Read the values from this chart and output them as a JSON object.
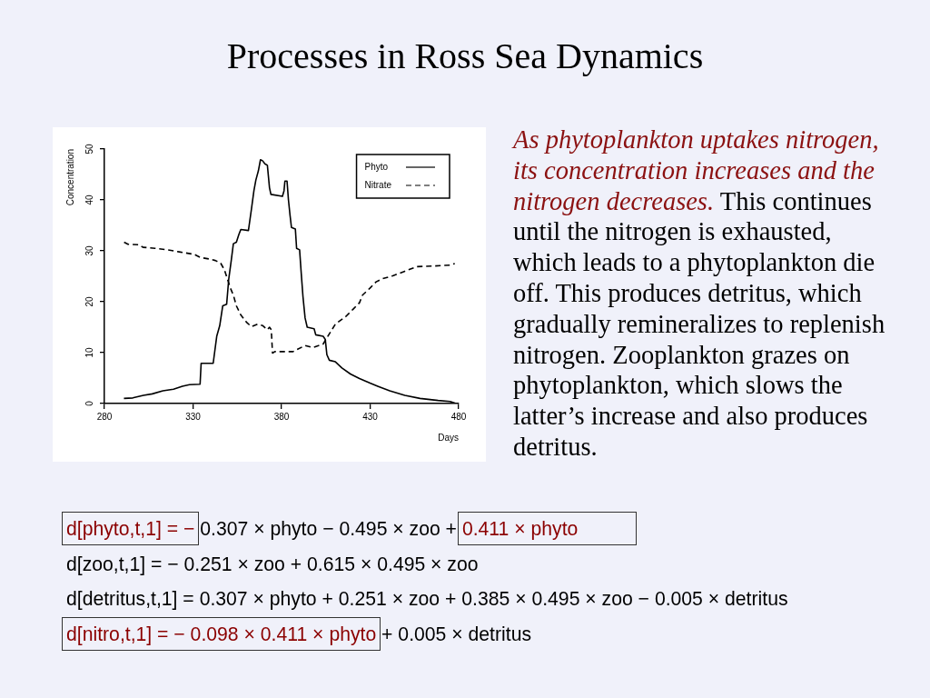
{
  "chart_data": {
    "type": "line",
    "title": "Processes in Ross Sea Dynamics",
    "xlabel": "Days",
    "ylabel": "Concentration",
    "xlim": [
      280,
      480
    ],
    "xticks": [
      280,
      330,
      380,
      430,
      480
    ],
    "ylim": [
      0,
      50
    ],
    "yticks": [
      0,
      10,
      20,
      30,
      40,
      50
    ],
    "grid": false,
    "legend": "top right",
    "marker": "none",
    "series": [
      {
        "name": "Phyto",
        "color": "#000000",
        "line_style": "solid",
        "x": [
          291,
          296,
          302,
          307,
          313,
          319,
          324,
          328,
          334,
          334.6,
          341.4,
          343.4,
          345.1,
          346.8,
          349,
          350.2,
          351.6,
          352.8,
          354.5,
          355.9,
          357,
          361.3,
          363,
          364.4,
          365.5,
          366.9,
          368.1,
          369.3,
          370.6,
          372,
          373.2,
          374,
          380.5,
          381.4,
          381.9,
          383.1,
          383.9,
          384.8,
          385.6,
          387.8,
          388.5,
          390.2,
          391.1,
          392.1,
          393.3,
          394.5,
          398.4,
          399.3,
          403.5,
          404.7,
          405.6,
          407,
          410.4,
          414.1,
          418.9,
          424,
          430,
          434.3,
          441.1,
          449.6,
          458.2,
          468.4,
          475.2,
          478.6
        ],
        "values": [
          1.0,
          1.1,
          1.6,
          1.9,
          2.5,
          2.8,
          3.4,
          3.7,
          3.8,
          7.9,
          7.9,
          13.2,
          15.3,
          19.2,
          19.5,
          24.5,
          28.1,
          31.4,
          31.7,
          33.2,
          34.2,
          34,
          38.2,
          41.8,
          43.9,
          45.7,
          47.9,
          47.7,
          47.1,
          46.8,
          42.4,
          41.1,
          40.7,
          41.8,
          43.7,
          43.7,
          40,
          37,
          34.6,
          34.3,
          30.5,
          30.2,
          25.7,
          21,
          16.8,
          15,
          14.7,
          13.5,
          13.2,
          12.6,
          9.6,
          8.5,
          8.2,
          7,
          5.8,
          4.9,
          4,
          3.4,
          2.5,
          1.6,
          1.0,
          0.6,
          0.4,
          0
        ]
      },
      {
        "name": "Nitrate",
        "color": "#000000",
        "line_style": "dashed",
        "x": [
          291.1,
          293.3,
          299.2,
          301.8,
          308.6,
          315.4,
          322.2,
          330.7,
          334.1,
          339.2,
          342.6,
          345.6,
          347.7,
          349.4,
          351.1,
          352.8,
          354.5,
          357,
          360.4,
          363,
          366.4,
          369.4,
          372,
          373.2,
          374.2,
          374.9,
          376.2,
          386.5,
          393.3,
          397.6,
          403.5,
          406.1,
          410.4,
          416.3,
          420.6,
          424,
          425.7,
          430,
          433.4,
          436.8,
          442.8,
          449.6,
          456.5,
          465,
          475.2,
          477.8
        ],
        "values": [
          31.7,
          31.3,
          31.2,
          30.7,
          30.5,
          30.2,
          29.8,
          29.3,
          28.7,
          28.4,
          28.1,
          27.6,
          26.3,
          24.5,
          22.7,
          21.3,
          19.2,
          17.4,
          15.9,
          15.1,
          15.6,
          15.3,
          14.5,
          15,
          14.5,
          9.9,
          10.2,
          10.2,
          11.4,
          11,
          11.7,
          13.2,
          15.6,
          17.1,
          18.6,
          19.8,
          21.3,
          22.7,
          23.9,
          24.5,
          25.1,
          26,
          26.9,
          27,
          27.2,
          27.5
        ]
      }
    ],
    "annotations": [
      "As phytoplankton uptakes nitrogen, its concentration increases and the",
      "nitrogen decreases.",
      "This continues",
      "until the nitrogen is exhausted, which leads to a phytoplankton die off. This produces detritus, which gradually remineralizes to replenish nitrogen. Zooplankton grazes on phytoplankton, which slows the latter’s increase and also produces detritus.",
      "d[phyto,t,1] = −",
      "0.307 × phyto − 0.495 × zoo +",
      "0.411 × phyto",
      "d[zoo,t,1] = − 0.251 × zoo + 0.615 × 0.495 × zoo",
      "d[detritus,t,1] = 0.307 × phyto + 0.251 × zoo + 0.385 × 0.495 × zoo − 0.005 × detritus",
      "d[nitro,t,1] = − 0.098 × 0.411 × phyto",
      "+ 0.005 × detritus"
    ]
  }
}
